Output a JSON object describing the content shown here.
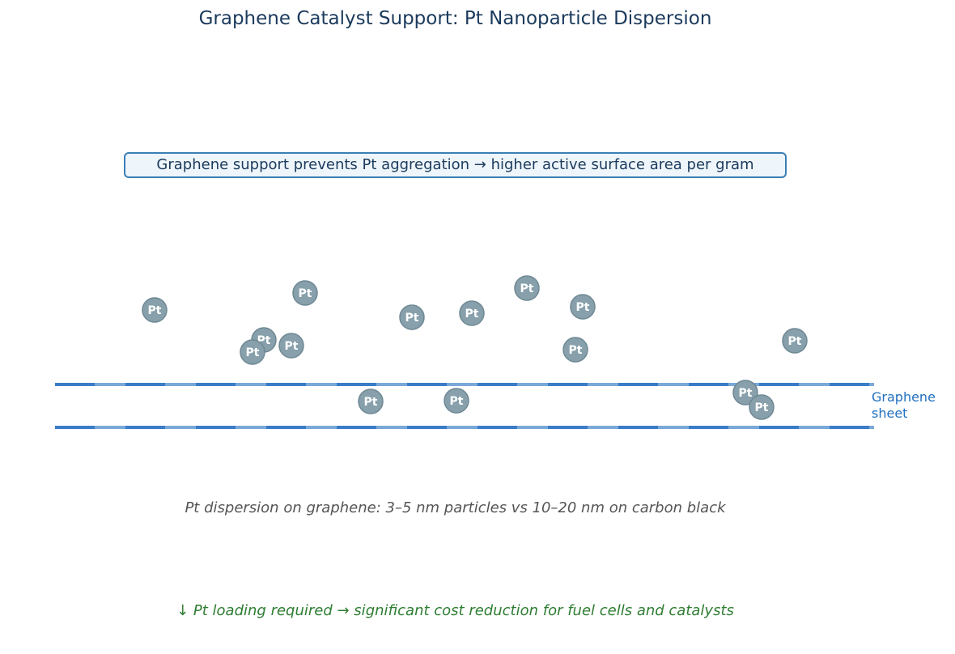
{
  "title": "Graphene Catalyst Support: Pt Nanoparticle Dispersion",
  "callout": "Graphene support prevents Pt aggregation → higher active surface area per gram",
  "sheet_label_line1": "Graphene",
  "sheet_label_line2": "sheet",
  "particle_label": "Pt",
  "dispersion_note": "Pt dispersion on graphene: 3–5 nm particles vs 10–20 nm on carbon black",
  "cost_note": "↓ Pt loading required → significant cost reduction for fuel cells and catalysts",
  "colors": {
    "particle_fill": "#87a0ab",
    "particle_stroke": "#6e8894",
    "sheet_dark": "#3a7cc7",
    "sheet_light": "#7aa8d8",
    "title": "#1b3a5c",
    "green_note": "#2e7d32"
  },
  "particle_count": 16
}
